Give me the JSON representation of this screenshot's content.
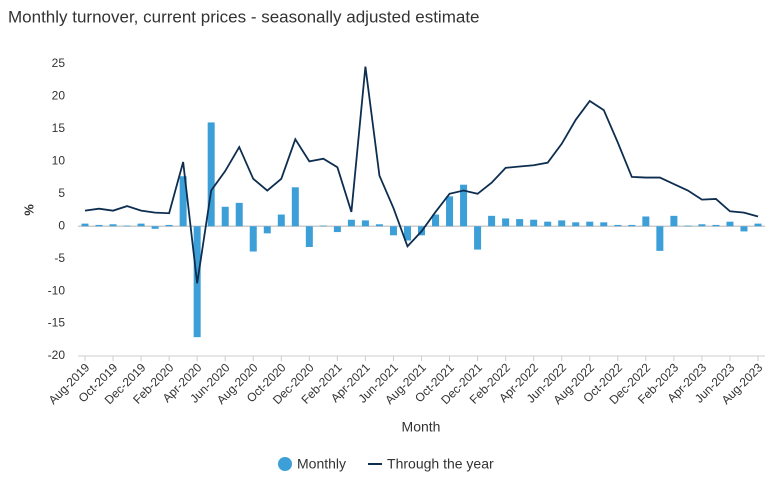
{
  "chart_data": {
    "type": "bar-line",
    "title": "Monthly turnover, current prices - seasonally adjusted estimate",
    "x_label": "Month",
    "y_label": "%",
    "categories": [
      "Aug-2019",
      null,
      "Oct-2019",
      null,
      "Dec-2019",
      null,
      "Feb-2020",
      null,
      "Apr-2020",
      null,
      "Jun-2020",
      null,
      "Aug-2020",
      null,
      "Oct-2020",
      null,
      "Dec-2020",
      null,
      "Feb-2021",
      null,
      "Apr-2021",
      null,
      "Jun-2021",
      null,
      "Aug-2021",
      null,
      "Oct-2021",
      null,
      "Dec-2021",
      null,
      "Feb-2022",
      null,
      "Apr-2022",
      null,
      "Jun-2022",
      null,
      "Aug-2022",
      null,
      "Oct-2022",
      null,
      "Dec-2022",
      null,
      "Feb-2023",
      null,
      "Apr-2023",
      null,
      "Jun-2023",
      null,
      "Aug-2023"
    ],
    "series": [
      {
        "name": "Monthly",
        "type": "bar",
        "color": "#3d9fd8",
        "values": [
          0.4,
          0.2,
          0.3,
          0.1,
          0.4,
          -0.4,
          0.2,
          7.7,
          -17.1,
          16.0,
          3.0,
          3.6,
          -3.9,
          -1.1,
          1.8,
          6.0,
          -3.2,
          0.1,
          -0.9,
          1.0,
          0.9,
          0.3,
          -1.4,
          -2.2,
          -1.4,
          1.8,
          4.6,
          6.4,
          -3.6,
          1.6,
          1.2,
          1.1,
          1.0,
          0.7,
          0.9,
          0.6,
          0.7,
          0.6,
          0.2,
          0.2,
          1.5,
          -3.8,
          1.6,
          0.1,
          0.3,
          0.2,
          0.7,
          -0.8,
          0.4
        ]
      },
      {
        "name": "Through the year",
        "type": "line",
        "color": "#0e2e50",
        "values": [
          2.4,
          2.7,
          2.4,
          3.1,
          2.4,
          2.1,
          2.0,
          9.9,
          -8.8,
          5.5,
          8.5,
          12.2,
          7.3,
          5.5,
          7.3,
          13.4,
          10.0,
          10.4,
          9.1,
          2.2,
          24.6,
          7.8,
          2.8,
          -3.1,
          -0.8,
          2.2,
          5.0,
          5.5,
          5.0,
          6.7,
          9.0,
          9.2,
          9.4,
          9.8,
          12.7,
          16.4,
          19.3,
          17.9,
          12.9,
          7.6,
          7.5,
          7.5,
          6.5,
          5.5,
          4.1,
          4.2,
          2.3,
          2.1,
          1.5
        ]
      }
    ],
    "ylim": [
      -20,
      25
    ],
    "yticks": [
      -20,
      -15,
      -10,
      -5,
      0,
      5,
      10,
      15,
      20,
      25
    ],
    "legend": "bottom"
  }
}
